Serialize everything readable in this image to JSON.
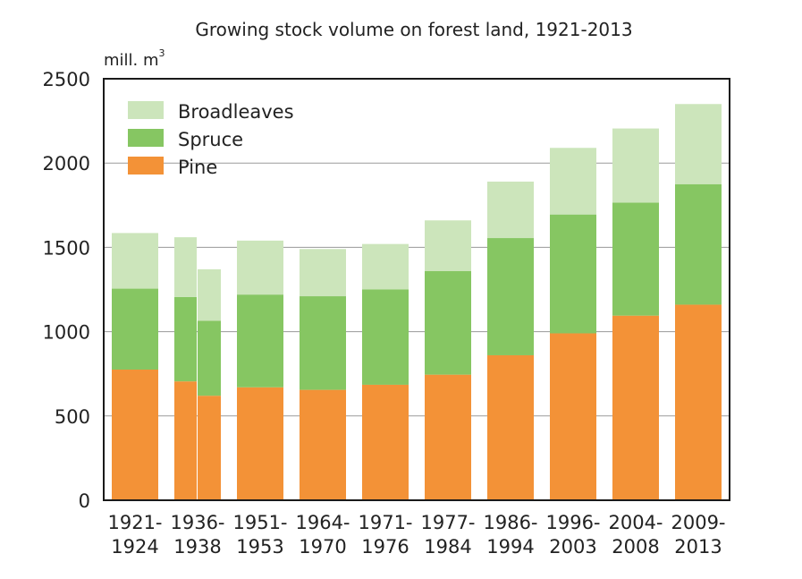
{
  "chart_data": {
    "type": "bar",
    "stacked": true,
    "title": "Growing stock volume on forest  land, 1921-2013",
    "ylabel": "mill. m",
    "ylabel_superscript": "3",
    "xlabel": "",
    "ylim": [
      0,
      2500
    ],
    "yticks": [
      0,
      500,
      1000,
      1500,
      2000,
      2500
    ],
    "grid": true,
    "legend_position": "top-left",
    "categories": [
      {
        "line1": "1921-",
        "line2": "1924"
      },
      {
        "line1": "1936-",
        "line2": "1938"
      },
      {
        "line1": "1951-",
        "line2": "1953"
      },
      {
        "line1": "1964-",
        "line2": "1970"
      },
      {
        "line1": "1971-",
        "line2": "1976"
      },
      {
        "line1": "1977-",
        "line2": "1984"
      },
      {
        "line1": "1986-",
        "line2": "1994"
      },
      {
        "line1": "1996-",
        "line2": "2003"
      },
      {
        "line1": "2004-",
        "line2": "2008"
      },
      {
        "line1": "2009-",
        "line2": "2013"
      }
    ],
    "series": [
      {
        "name": "Pine",
        "color": "#f39237",
        "values": [
          775,
          705,
          670,
          655,
          685,
          745,
          860,
          990,
          1095,
          1160
        ]
      },
      {
        "name": "Spruce",
        "color": "#86c662",
        "values": [
          480,
          500,
          550,
          555,
          565,
          615,
          695,
          705,
          670,
          715
        ]
      },
      {
        "name": "Broadleaves",
        "color": "#cce5bb",
        "values": [
          330,
          355,
          320,
          280,
          270,
          300,
          335,
          395,
          440,
          475
        ]
      }
    ],
    "split_category": {
      "index": 1,
      "second_bar": {
        "Pine": 620,
        "Spruce": 445,
        "Broadleaves": 305
      }
    },
    "legend_order": [
      "Broadleaves",
      "Spruce",
      "Pine"
    ]
  }
}
